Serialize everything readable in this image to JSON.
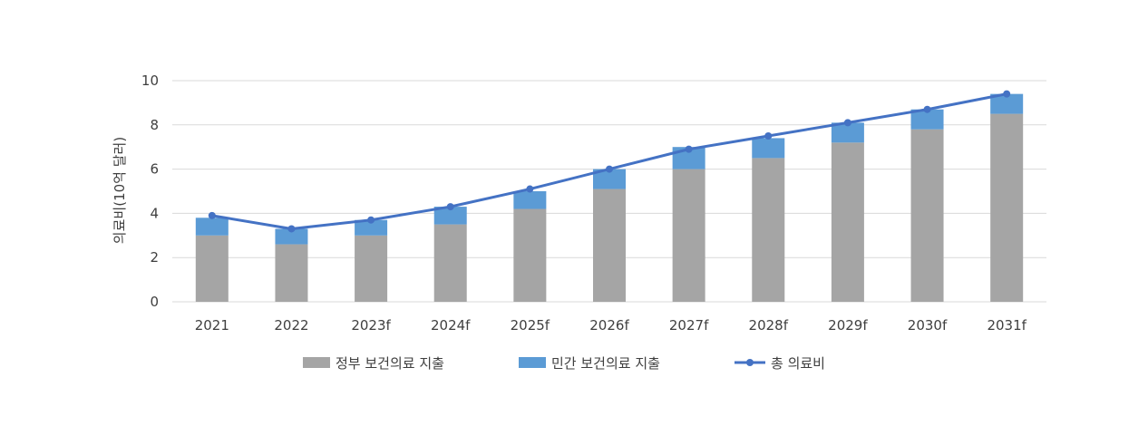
{
  "chart_data": {
    "type": "bar",
    "stacked": true,
    "categories": [
      "2021",
      "2022",
      "2023f",
      "2024f",
      "2025f",
      "2026f",
      "2027f",
      "2028f",
      "2029f",
      "2030f",
      "2031f"
    ],
    "series": [
      {
        "name": "정부 보건의료 지출",
        "type": "bar",
        "color": "#a5a5a5",
        "values": [
          3.0,
          2.6,
          3.0,
          3.5,
          4.2,
          5.1,
          6.0,
          6.5,
          7.2,
          7.8,
          8.5
        ]
      },
      {
        "name": "민간 보건의료 지출",
        "type": "bar",
        "color": "#5b9bd5",
        "values": [
          0.8,
          0.7,
          0.7,
          0.8,
          0.8,
          0.9,
          1.0,
          0.9,
          0.9,
          0.9,
          0.9
        ]
      },
      {
        "name": "총 의료비",
        "type": "line",
        "color": "#4472c4",
        "values": [
          3.9,
          3.3,
          3.7,
          4.3,
          5.1,
          6.0,
          6.9,
          7.5,
          8.1,
          8.7,
          9.4
        ]
      }
    ],
    "ylabel": "의료비(10억 달러)",
    "xlabel": "",
    "ylim": [
      0,
      10
    ],
    "yticks": [
      0,
      2,
      4,
      6,
      8,
      10
    ],
    "grid": true,
    "legend_position": "bottom"
  }
}
